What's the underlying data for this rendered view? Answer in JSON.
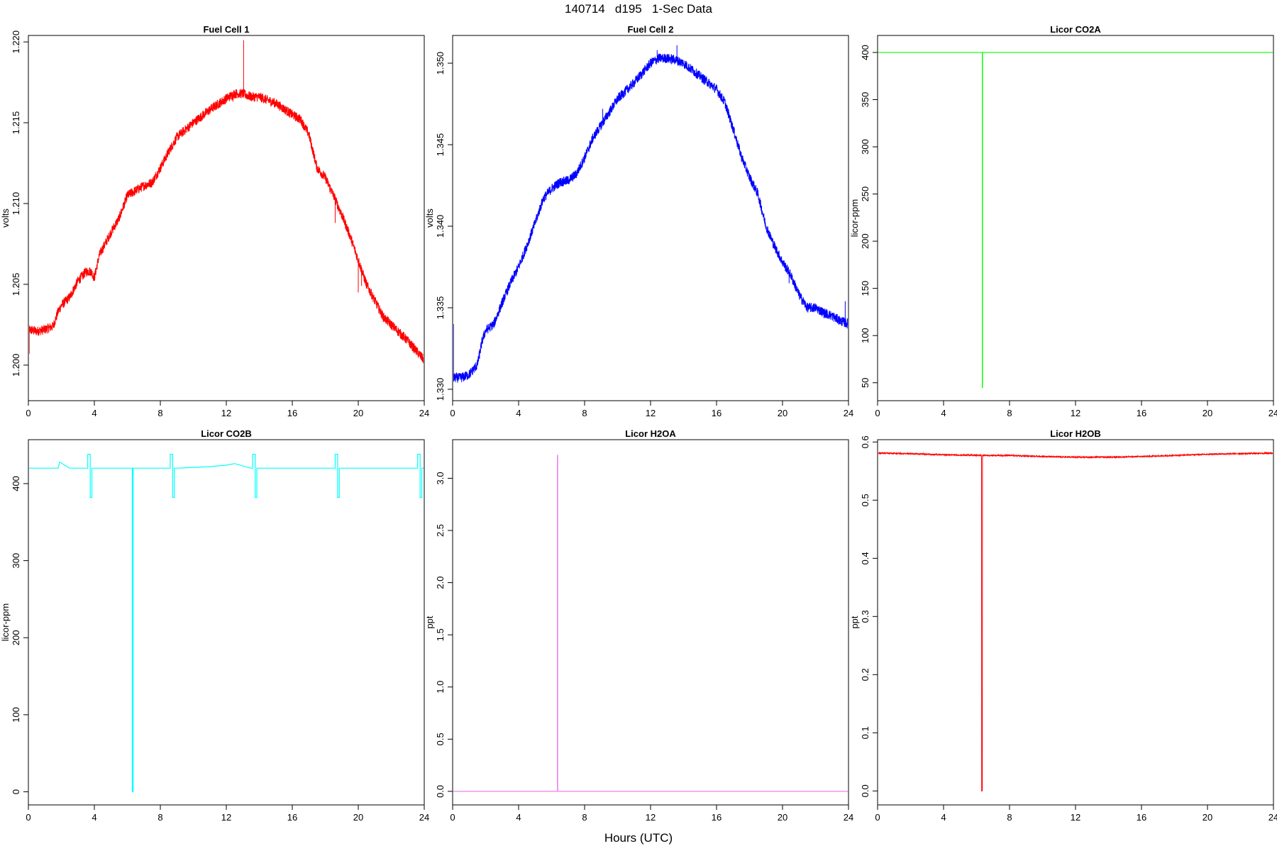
{
  "figure": {
    "title": "140714   d195   1-Sec Data",
    "common_xlabel": "Hours (UTC)"
  },
  "chart_data": [
    {
      "type": "line",
      "title": "Fuel Cell 1",
      "xlabel": "",
      "ylabel": "volts",
      "color": "#ff0000",
      "xlim": [
        0,
        24
      ],
      "ylim": [
        1.1978,
        1.2204
      ],
      "xticks": [
        0,
        4,
        8,
        12,
        16,
        20,
        24
      ],
      "yticks": [
        1.2,
        1.205,
        1.21,
        1.215,
        1.22
      ],
      "ytick_decimals": 3,
      "x": [
        0,
        0.5,
        1.0,
        1.5,
        1.8,
        2.0,
        2.5,
        3.0,
        3.5,
        3.8,
        4.0,
        4.3,
        5.0,
        5.5,
        6.0,
        7.0,
        7.5,
        8.0,
        8.5,
        9.0,
        10.0,
        11.0,
        12.0,
        12.5,
        13.0,
        13.5,
        14.0,
        15.0,
        16.0,
        16.5,
        17.0,
        17.5,
        18.0,
        18.5,
        19.0,
        19.5,
        20.0,
        20.5,
        21.0,
        21.5,
        22.0,
        22.5,
        23.0,
        23.5,
        24.0
      ],
      "y": [
        1.2022,
        1.2021,
        1.2022,
        1.2024,
        1.2033,
        1.2037,
        1.2042,
        1.2052,
        1.2058,
        1.2058,
        1.2054,
        1.2068,
        1.2082,
        1.2091,
        1.2105,
        1.2111,
        1.2113,
        1.2122,
        1.2132,
        1.2141,
        1.215,
        1.2158,
        1.2165,
        1.2168,
        1.2168,
        1.2166,
        1.2166,
        1.2162,
        1.2155,
        1.2152,
        1.2143,
        1.2122,
        1.2116,
        1.2105,
        1.2093,
        1.208,
        1.2065,
        1.205,
        1.204,
        1.203,
        1.2025,
        1.202,
        1.2015,
        1.2009,
        1.2003
      ],
      "noise": 0.0003,
      "spikes": [
        {
          "x": 0.05,
          "y": 1.2007
        },
        {
          "x": 13.05,
          "y": 1.2201
        },
        {
          "x": 12.4,
          "y": 1.2163
        },
        {
          "x": 14.2,
          "y": 1.2168
        },
        {
          "x": 18.6,
          "y": 1.2088
        },
        {
          "x": 20.2,
          "y": 1.2049
        },
        {
          "x": 20.0,
          "y": 1.2045
        }
      ]
    },
    {
      "type": "line",
      "title": "Fuel Cell 2",
      "xlabel": "",
      "ylabel": "volts",
      "color": "#0000ff",
      "xlim": [
        0,
        24
      ],
      "ylim": [
        1.3293,
        1.3517
      ],
      "xticks": [
        0,
        4,
        8,
        12,
        16,
        20,
        24
      ],
      "yticks": [
        1.33,
        1.335,
        1.34,
        1.345,
        1.35
      ],
      "ytick_decimals": 3,
      "x": [
        0,
        0.5,
        1.0,
        1.5,
        1.8,
        2.0,
        2.5,
        3.0,
        3.5,
        4.0,
        4.5,
        5.0,
        5.5,
        6.0,
        6.5,
        7.0,
        7.5,
        8.0,
        8.5,
        9.0,
        9.5,
        10.0,
        11.0,
        12.0,
        12.5,
        13.0,
        13.5,
        14.0,
        15.0,
        16.0,
        16.5,
        17.0,
        17.5,
        18.0,
        18.5,
        19.0,
        19.5,
        20.0,
        20.5,
        21.0,
        21.5,
        22.0,
        22.5,
        23.0,
        23.5,
        24.0
      ],
      "y": [
        1.3307,
        1.3307,
        1.3309,
        1.3315,
        1.333,
        1.3336,
        1.334,
        1.3353,
        1.3365,
        1.3375,
        1.3388,
        1.3402,
        1.3417,
        1.3423,
        1.3427,
        1.3428,
        1.3432,
        1.3442,
        1.3454,
        1.3462,
        1.347,
        1.3478,
        1.3488,
        1.35,
        1.3503,
        1.3503,
        1.3502,
        1.35,
        1.3492,
        1.3484,
        1.3476,
        1.346,
        1.3443,
        1.343,
        1.342,
        1.34,
        1.3388,
        1.3378,
        1.337,
        1.3358,
        1.335,
        1.335,
        1.3347,
        1.3345,
        1.3342,
        1.334
      ],
      "noise": 0.0003,
      "spikes": [
        {
          "x": 0.05,
          "y": 1.334
        },
        {
          "x": 4.5,
          "y": 1.339
        },
        {
          "x": 13.6,
          "y": 1.3511
        },
        {
          "x": 12.4,
          "y": 1.3508
        },
        {
          "x": 20.4,
          "y": 1.3365
        },
        {
          "x": 23.8,
          "y": 1.3354
        },
        {
          "x": 9.1,
          "y": 1.3472
        }
      ]
    },
    {
      "type": "line",
      "title": "Licor CO2A",
      "xlabel": "",
      "ylabel": "licor-ppm",
      "color": "#00ff00",
      "xlim": [
        0,
        24
      ],
      "ylim": [
        31,
        418
      ],
      "xticks": [
        0,
        4,
        8,
        12,
        16,
        20,
        24
      ],
      "yticks": [
        50,
        100,
        150,
        200,
        250,
        300,
        350,
        400
      ],
      "ytick_decimals": 0,
      "x": [
        0,
        6.35,
        6.35,
        6.36,
        6.36,
        24
      ],
      "y": [
        400,
        400,
        45,
        45,
        400,
        400
      ],
      "noise": 0,
      "spikes": []
    },
    {
      "type": "line",
      "title": "Licor CO2B",
      "xlabel": "",
      "ylabel": "licor-ppm",
      "color": "#00ffff",
      "xlim": [
        0,
        24
      ],
      "ylim": [
        -17,
        457
      ],
      "xticks": [
        0,
        4,
        8,
        12,
        16,
        20,
        24
      ],
      "yticks": [
        0,
        100,
        200,
        300,
        400
      ],
      "ytick_decimals": 0,
      "x": [
        0,
        1.8,
        1.9,
        2.2,
        2.5,
        3.5,
        3.6,
        3.6,
        3.75,
        3.75,
        3.85,
        3.85,
        4.0,
        6.3,
        6.3,
        6.35,
        6.35,
        8.5,
        8.6,
        8.6,
        8.75,
        8.75,
        8.85,
        8.85,
        9.0,
        10,
        11,
        12,
        12.5,
        13.5,
        13.6,
        13.6,
        13.75,
        13.75,
        13.85,
        13.85,
        14.0,
        18.5,
        18.6,
        18.6,
        18.75,
        18.75,
        18.85,
        18.85,
        19.0,
        23.5,
        23.6,
        23.6,
        23.75,
        23.75,
        23.85,
        23.85,
        24.0
      ],
      "y": [
        420,
        420,
        428,
        424,
        420,
        420,
        420,
        438,
        438,
        382,
        382,
        420,
        420,
        420,
        0,
        0,
        420,
        420,
        420,
        438,
        438,
        382,
        382,
        420,
        420,
        421,
        422,
        424,
        426,
        420,
        420,
        438,
        438,
        382,
        382,
        420,
        420,
        420,
        420,
        438,
        438,
        382,
        382,
        420,
        420,
        420,
        420,
        438,
        438,
        382,
        382,
        420,
        420
      ],
      "noise": 0,
      "spikes": []
    },
    {
      "type": "line",
      "title": "Licor H2OA",
      "xlabel": "",
      "ylabel": "ppt",
      "color": "#ee82ee",
      "xlim": [
        0,
        24
      ],
      "ylim": [
        -0.13,
        3.37
      ],
      "xticks": [
        0,
        4,
        8,
        12,
        16,
        20,
        24
      ],
      "yticks": [
        0.0,
        0.5,
        1.0,
        1.5,
        2.0,
        2.5,
        3.0
      ],
      "ytick_decimals": 1,
      "x": [
        0,
        6.35,
        6.35,
        6.37,
        6.37,
        24
      ],
      "y": [
        0.0,
        0.0,
        3.22,
        3.22,
        0.0,
        0.0
      ],
      "noise": 0,
      "spikes": []
    },
    {
      "type": "line",
      "title": "Licor H2OB",
      "xlabel": "",
      "ylabel": "ppt",
      "color": "#ff0000",
      "xlim": [
        0,
        24
      ],
      "ylim": [
        -0.024,
        0.604
      ],
      "xticks": [
        0,
        4,
        8,
        12,
        16,
        20,
        24
      ],
      "yticks": [
        0.0,
        0.1,
        0.2,
        0.3,
        0.4,
        0.5,
        0.6
      ],
      "ytick_decimals": 1,
      "x": [
        0,
        2,
        4,
        6.3,
        6.3,
        6.35,
        6.35,
        8,
        10,
        12,
        14,
        16,
        18,
        20,
        22,
        24
      ],
      "y": [
        0.581,
        0.58,
        0.578,
        0.577,
        0.0,
        0.0,
        0.577,
        0.577,
        0.575,
        0.574,
        0.574,
        0.575,
        0.577,
        0.579,
        0.58,
        0.581
      ],
      "noise": 0.001,
      "spikes": []
    }
  ]
}
